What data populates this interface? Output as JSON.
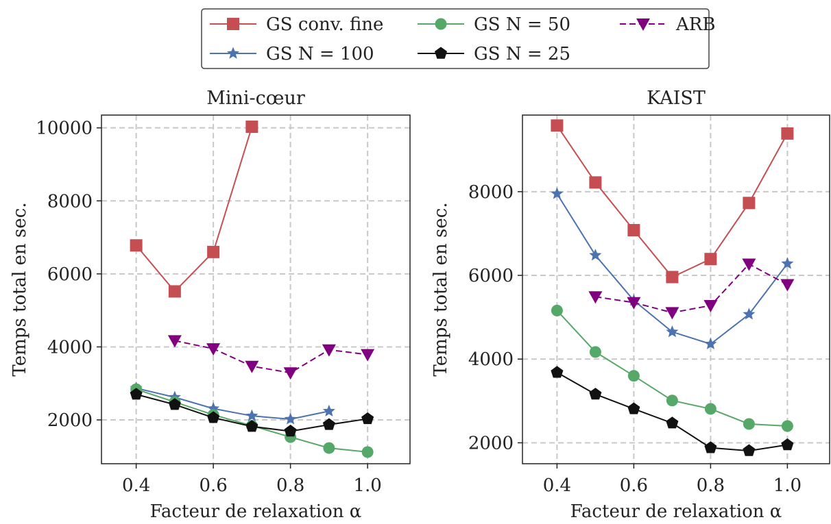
{
  "legend": {
    "placement": "top-center",
    "entries": [
      {
        "label": "GS conv. fine",
        "color": "#c44e52",
        "marker": "square",
        "linestyle": "solid"
      },
      {
        "label": "GS N = 100",
        "color": "#4c72b0",
        "marker": "star",
        "linestyle": "solid"
      },
      {
        "label": "GS N = 50",
        "color": "#55a868",
        "marker": "circle",
        "linestyle": "solid"
      },
      {
        "label": "GS N = 25",
        "color": "#111111",
        "marker": "pentagon",
        "linestyle": "solid"
      },
      {
        "label": "ARB",
        "color": "#800080",
        "marker": "triangle-down",
        "linestyle": "dashed"
      }
    ]
  },
  "chart_data": [
    {
      "type": "line",
      "title": "Mini-cœur",
      "xlabel": "Facteur de relaxation α",
      "ylabel": "Temps total en sec.",
      "xlim": [
        0.31,
        1.11
      ],
      "ylim": [
        800,
        10350
      ],
      "xticks": [
        0.4,
        0.6,
        0.8,
        1.0
      ],
      "xtick_labels": [
        "0.4",
        "0.6",
        "0.8",
        "1.0"
      ],
      "yticks": [
        2000,
        4000,
        6000,
        8000,
        10000
      ],
      "ytick_labels": [
        "2000",
        "4000",
        "6000",
        "8000",
        "10000"
      ],
      "grid": true,
      "series": [
        {
          "name": "GS conv. fine",
          "x": [
            0.4,
            0.5,
            0.6,
            0.7
          ],
          "y": [
            6780,
            5520,
            6600,
            10030
          ]
        },
        {
          "name": "GS N = 100",
          "x": [
            0.4,
            0.5,
            0.6,
            0.7,
            0.8,
            0.9
          ],
          "y": [
            2870,
            2620,
            2310,
            2110,
            2020,
            2240
          ]
        },
        {
          "name": "GS N = 50",
          "x": [
            0.4,
            0.5,
            0.6,
            0.7,
            0.8,
            0.9,
            1.0
          ],
          "y": [
            2840,
            2490,
            2140,
            1840,
            1530,
            1230,
            1120
          ]
        },
        {
          "name": "GS N = 25",
          "x": [
            0.4,
            0.5,
            0.6,
            0.7,
            0.8,
            0.9,
            1.0
          ],
          "y": [
            2700,
            2420,
            2060,
            1820,
            1690,
            1870,
            2030
          ]
        },
        {
          "name": "ARB",
          "x": [
            0.5,
            0.6,
            0.7,
            0.8,
            0.9,
            1.0
          ],
          "y": [
            4170,
            3950,
            3470,
            3290,
            3920,
            3790
          ]
        }
      ]
    },
    {
      "type": "line",
      "title": "KAIST",
      "xlabel": "Facteur de relaxation α",
      "ylabel": "Temps total en sec.",
      "xlim": [
        0.31,
        1.11
      ],
      "ylim": [
        1500,
        9830
      ],
      "xticks": [
        0.4,
        0.6,
        0.8,
        1.0
      ],
      "xtick_labels": [
        "0.4",
        "0.6",
        "0.8",
        "1.0"
      ],
      "yticks": [
        2000,
        4000,
        6000,
        8000
      ],
      "ytick_labels": [
        "2000",
        "4000",
        "6000",
        "8000"
      ],
      "grid": true,
      "series": [
        {
          "name": "GS conv. fine",
          "x": [
            0.4,
            0.5,
            0.6,
            0.7,
            0.8,
            0.9,
            1.0
          ],
          "y": [
            9580,
            8220,
            7080,
            5960,
            6390,
            7730,
            9390
          ]
        },
        {
          "name": "GS N = 100",
          "x": [
            0.4,
            0.5,
            0.6,
            0.7,
            0.8,
            0.9,
            1.0
          ],
          "y": [
            7950,
            6480,
            5400,
            4650,
            4360,
            5070,
            6280
          ]
        },
        {
          "name": "GS N = 50",
          "x": [
            0.4,
            0.5,
            0.6,
            0.7,
            0.8,
            0.9,
            1.0
          ],
          "y": [
            5160,
            4170,
            3600,
            3010,
            2810,
            2450,
            2400
          ]
        },
        {
          "name": "GS N = 25",
          "x": [
            0.4,
            0.5,
            0.6,
            0.7,
            0.8,
            0.9,
            1.0
          ],
          "y": [
            3680,
            3160,
            2810,
            2470,
            1880,
            1810,
            1950
          ]
        },
        {
          "name": "ARB",
          "x": [
            0.5,
            0.6,
            0.7,
            0.8,
            0.9,
            1.0
          ],
          "y": [
            5490,
            5350,
            5110,
            5280,
            6270,
            5780
          ]
        }
      ]
    }
  ]
}
